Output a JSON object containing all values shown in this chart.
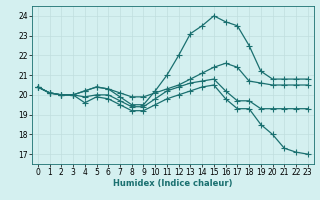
{
  "xlabel": "Humidex (Indice chaleur)",
  "background_color": "#d4f0f0",
  "grid_color": "#c0dede",
  "line_color": "#1a7070",
  "xlim": [
    -0.5,
    23.5
  ],
  "ylim": [
    16.5,
    24.5
  ],
  "xticks": [
    0,
    1,
    2,
    3,
    4,
    5,
    6,
    7,
    8,
    9,
    10,
    11,
    12,
    13,
    14,
    15,
    16,
    17,
    18,
    19,
    20,
    21,
    22,
    23
  ],
  "yticks": [
    17,
    18,
    19,
    20,
    21,
    22,
    23,
    24
  ],
  "lines": [
    {
      "x": [
        0,
        1,
        2,
        3,
        4,
        5,
        6,
        7,
        8,
        9,
        10,
        11,
        12,
        13,
        14,
        15,
        16,
        17,
        18,
        19,
        20,
        21,
        22,
        23
      ],
      "y": [
        20.4,
        20.1,
        20.0,
        20.0,
        20.2,
        20.4,
        20.3,
        20.1,
        19.9,
        19.9,
        20.1,
        20.3,
        20.5,
        20.8,
        21.1,
        21.4,
        21.6,
        21.4,
        20.7,
        20.6,
        20.5,
        20.5,
        20.5,
        20.5
      ]
    },
    {
      "x": [
        0,
        1,
        2,
        3,
        4,
        5,
        6,
        7,
        8,
        9,
        10,
        11,
        12,
        13,
        14,
        15,
        16,
        17,
        18,
        19,
        20,
        21,
        22,
        23
      ],
      "y": [
        20.4,
        20.1,
        20.0,
        20.0,
        20.2,
        20.4,
        20.3,
        19.9,
        19.5,
        19.5,
        20.2,
        21.0,
        22.0,
        23.1,
        23.5,
        24.0,
        23.7,
        23.5,
        22.5,
        21.2,
        20.8,
        20.8,
        20.8,
        20.8
      ]
    },
    {
      "x": [
        0,
        1,
        2,
        3,
        4,
        5,
        6,
        7,
        8,
        9,
        10,
        11,
        12,
        13,
        14,
        15,
        16,
        17,
        18,
        19,
        20,
        21,
        22,
        23
      ],
      "y": [
        20.4,
        20.1,
        20.0,
        20.0,
        19.9,
        20.0,
        20.0,
        19.7,
        19.4,
        19.4,
        19.8,
        20.2,
        20.4,
        20.6,
        20.7,
        20.8,
        20.2,
        19.7,
        19.7,
        19.3,
        19.3,
        19.3,
        19.3,
        19.3
      ]
    },
    {
      "x": [
        0,
        1,
        2,
        3,
        4,
        5,
        6,
        7,
        8,
        9,
        10,
        11,
        12,
        13,
        14,
        15,
        16,
        17,
        18,
        19,
        20,
        21,
        22,
        23
      ],
      "y": [
        20.4,
        20.1,
        20.0,
        20.0,
        19.6,
        19.9,
        19.8,
        19.5,
        19.2,
        19.2,
        19.5,
        19.8,
        20.0,
        20.2,
        20.4,
        20.5,
        19.8,
        19.3,
        19.3,
        18.5,
        18.0,
        17.3,
        17.1,
        17.0
      ]
    }
  ],
  "marker": "+",
  "markersize": 4,
  "linewidth": 0.9,
  "tick_fontsize": 5.5
}
